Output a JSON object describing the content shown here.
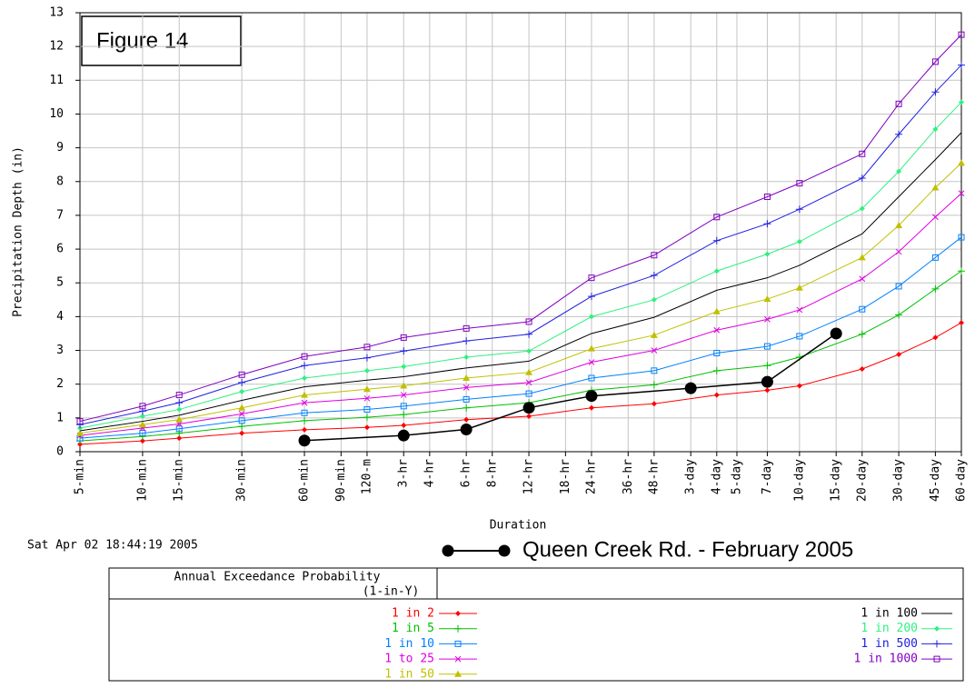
{
  "chart_data": {
    "type": "line",
    "figure_label": "Figure 14",
    "y_label": "Precipitation Depth (in)",
    "x_label": "Duration",
    "timestamp": "Sat Apr 02 18:44:19 2005",
    "legend_title": [
      "Annual Exceedance Probability",
      "(1-in-Y)"
    ],
    "xscale": "log",
    "grid": true,
    "xlim": [
      5,
      86400
    ],
    "ylim": [
      0,
      13
    ],
    "yticks": [
      0,
      1,
      2,
      3,
      4,
      5,
      6,
      7,
      8,
      9,
      10,
      11,
      12,
      13
    ],
    "xticks": [
      {
        "value": 5,
        "label": "5-min"
      },
      {
        "value": 10,
        "label": "10-min"
      },
      {
        "value": 15,
        "label": "15-min"
      },
      {
        "value": 30,
        "label": "30-min"
      },
      {
        "value": 60,
        "label": "60-min"
      },
      {
        "value": 90,
        "label": "90-min"
      },
      {
        "value": 120,
        "label": "120-m"
      },
      {
        "value": 180,
        "label": "3-hr"
      },
      {
        "value": 240,
        "label": "4-hr"
      },
      {
        "value": 360,
        "label": "6-hr"
      },
      {
        "value": 480,
        "label": "8-hr"
      },
      {
        "value": 720,
        "label": "12-hr"
      },
      {
        "value": 1080,
        "label": "18-hr"
      },
      {
        "value": 1440,
        "label": "24-hr"
      },
      {
        "value": 2160,
        "label": "36-hr"
      },
      {
        "value": 2880,
        "label": "48-hr"
      },
      {
        "value": 4320,
        "label": "3-day"
      },
      {
        "value": 5760,
        "label": "4-day"
      },
      {
        "value": 7200,
        "label": "5-day"
      },
      {
        "value": 10080,
        "label": "7-day"
      },
      {
        "value": 14400,
        "label": "10-day"
      },
      {
        "value": 21600,
        "label": "15-day"
      },
      {
        "value": 28800,
        "label": "20-day"
      },
      {
        "value": 43200,
        "label": "30-day"
      },
      {
        "value": 64800,
        "label": "45-day"
      },
      {
        "value": 86400,
        "label": "60-day"
      }
    ],
    "series": [
      {
        "name": "1 in 2",
        "color": "#ff0000",
        "marker": "diamond",
        "x": [
          5,
          10,
          15,
          30,
          60,
          120,
          180,
          360,
          720,
          1440,
          2880,
          5760,
          10080,
          14400,
          28800,
          43200,
          64800,
          86400
        ],
        "values": [
          0.22,
          0.32,
          0.4,
          0.55,
          0.65,
          0.72,
          0.78,
          0.95,
          1.05,
          1.3,
          1.42,
          1.68,
          1.82,
          1.95,
          2.45,
          2.88,
          3.38,
          3.82
        ]
      },
      {
        "name": "1 in 5",
        "color": "#00c000",
        "marker": "plus",
        "x": [
          5,
          10,
          15,
          30,
          60,
          120,
          180,
          360,
          720,
          1440,
          2880,
          5760,
          10080,
          14400,
          28800,
          43200,
          64800,
          86400
        ],
        "values": [
          0.32,
          0.45,
          0.55,
          0.75,
          0.92,
          1.02,
          1.1,
          1.3,
          1.45,
          1.82,
          1.98,
          2.4,
          2.55,
          2.8,
          3.48,
          4.05,
          4.82,
          5.35
        ]
      },
      {
        "name": "1 in 10",
        "color": "#0080ff",
        "marker": "square",
        "x": [
          5,
          10,
          15,
          30,
          60,
          120,
          180,
          360,
          720,
          1440,
          2880,
          5760,
          10080,
          14400,
          28800,
          43200,
          64800,
          86400
        ],
        "values": [
          0.4,
          0.55,
          0.68,
          0.92,
          1.15,
          1.25,
          1.35,
          1.55,
          1.72,
          2.18,
          2.4,
          2.92,
          3.12,
          3.42,
          4.22,
          4.9,
          5.75,
          6.35
        ]
      },
      {
        "name": "1 to 25",
        "color": "#e000e0",
        "marker": "cross",
        "x": [
          5,
          10,
          15,
          30,
          60,
          120,
          180,
          360,
          720,
          1440,
          2880,
          5760,
          10080,
          14400,
          28800,
          43200,
          64800,
          86400
        ],
        "values": [
          0.48,
          0.7,
          0.82,
          1.12,
          1.45,
          1.58,
          1.68,
          1.9,
          2.05,
          2.65,
          3.0,
          3.6,
          3.92,
          4.2,
          5.12,
          5.92,
          6.95,
          7.65
        ]
      },
      {
        "name": "1 in 50",
        "color": "#c0c000",
        "marker": "triangle",
        "x": [
          5,
          10,
          15,
          30,
          60,
          120,
          180,
          360,
          720,
          1440,
          2880,
          5760,
          10080,
          14400,
          28800,
          43200,
          64800,
          86400
        ],
        "values": [
          0.55,
          0.8,
          0.95,
          1.3,
          1.68,
          1.85,
          1.95,
          2.18,
          2.35,
          3.05,
          3.45,
          4.15,
          4.52,
          4.85,
          5.75,
          6.7,
          7.82,
          8.55
        ]
      },
      {
        "name": "1 in 100",
        "color": "#000000",
        "marker": "none",
        "x": [
          5,
          10,
          15,
          30,
          60,
          120,
          180,
          360,
          720,
          1440,
          2880,
          5760,
          10080,
          14400,
          28800,
          43200,
          64800,
          86400
        ],
        "values": [
          0.62,
          0.9,
          1.08,
          1.52,
          1.92,
          2.12,
          2.22,
          2.48,
          2.68,
          3.5,
          3.98,
          4.78,
          5.15,
          5.52,
          6.45,
          7.55,
          8.65,
          9.45
        ]
      },
      {
        "name": "1 in 200",
        "color": "#30f080",
        "marker": "diamond",
        "x": [
          5,
          10,
          15,
          30,
          60,
          120,
          180,
          360,
          720,
          1440,
          2880,
          5760,
          10080,
          14400,
          28800,
          43200,
          64800,
          86400
        ],
        "values": [
          0.7,
          1.05,
          1.25,
          1.78,
          2.18,
          2.4,
          2.52,
          2.8,
          2.98,
          4.0,
          4.5,
          5.35,
          5.85,
          6.22,
          7.2,
          8.3,
          9.55,
          10.35
        ]
      },
      {
        "name": "1 in 500",
        "color": "#2020e0",
        "marker": "plus",
        "x": [
          5,
          10,
          15,
          30,
          60,
          120,
          180,
          360,
          720,
          1440,
          2880,
          5760,
          10080,
          14400,
          28800,
          43200,
          64800,
          86400
        ],
        "values": [
          0.8,
          1.2,
          1.45,
          2.05,
          2.55,
          2.78,
          2.98,
          3.28,
          3.48,
          4.6,
          5.22,
          6.25,
          6.75,
          7.18,
          8.1,
          9.4,
          10.65,
          11.45
        ]
      },
      {
        "name": "1 in 1000",
        "color": "#8000c0",
        "marker": "square",
        "x": [
          5,
          10,
          15,
          30,
          60,
          120,
          180,
          360,
          720,
          1440,
          2880,
          5760,
          10080,
          14400,
          28800,
          43200,
          64800,
          86400
        ],
        "values": [
          0.9,
          1.35,
          1.68,
          2.28,
          2.82,
          3.1,
          3.38,
          3.65,
          3.85,
          5.15,
          5.82,
          6.95,
          7.55,
          7.95,
          8.82,
          10.3,
          11.55,
          12.35
        ]
      },
      {
        "name": "Queen Creek Rd. - February 2005",
        "color": "#000000",
        "marker": "dot",
        "x": [
          60,
          180,
          360,
          720,
          1440,
          4320,
          10080,
          21600
        ],
        "values": [
          0.33,
          0.48,
          0.66,
          1.3,
          1.65,
          1.88,
          2.07,
          3.5
        ]
      }
    ]
  }
}
